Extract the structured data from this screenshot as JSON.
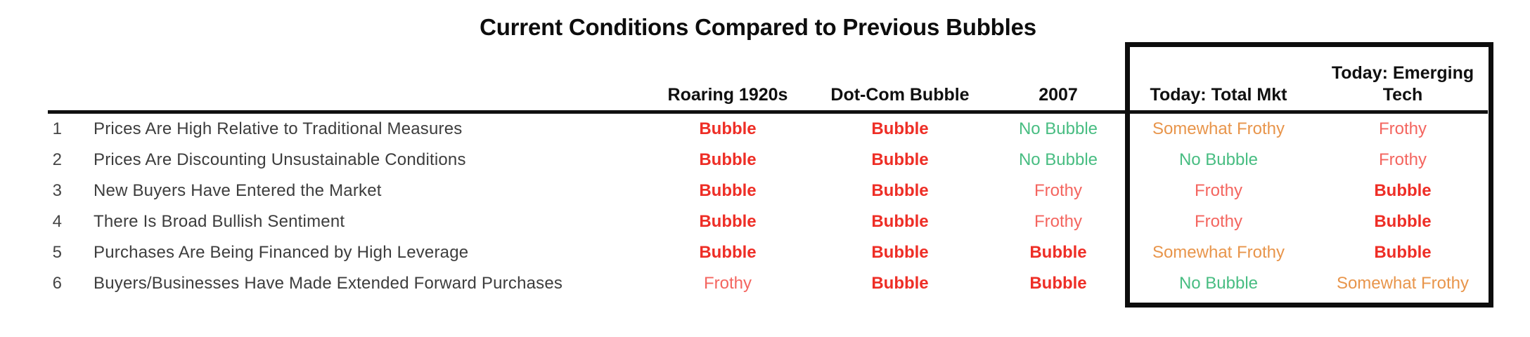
{
  "chart_data": {
    "type": "table",
    "title": "Current Conditions Compared to Previous Bubbles",
    "column_headers": [
      "Roaring 1920s",
      "Dot-Com Bubble",
      "2007",
      "Today: Total Mkt",
      "Today: Emerging Tech"
    ],
    "column_header_lines": [
      [
        "Roaring 1920s"
      ],
      [
        "Dot-Com Bubble"
      ],
      [
        "2007"
      ],
      [
        "Today: Total Mkt"
      ],
      [
        "Today: Emerging",
        "Tech"
      ]
    ],
    "boxed_columns": [
      "Today: Total Mkt",
      "Today: Emerging Tech"
    ],
    "rows": [
      {
        "num": "1",
        "label": "Prices Are High Relative to Traditional Measures",
        "values": [
          "Bubble",
          "Bubble",
          "No Bubble",
          "Somewhat Frothy",
          "Frothy"
        ]
      },
      {
        "num": "2",
        "label": "Prices Are Discounting Unsustainable Conditions",
        "values": [
          "Bubble",
          "Bubble",
          "No Bubble",
          "No Bubble",
          "Frothy"
        ]
      },
      {
        "num": "3",
        "label": "New Buyers Have Entered the Market",
        "values": [
          "Bubble",
          "Bubble",
          "Frothy",
          "Frothy",
          "Bubble"
        ]
      },
      {
        "num": "4",
        "label": "There Is Broad Bullish Sentiment",
        "values": [
          "Bubble",
          "Bubble",
          "Frothy",
          "Frothy",
          "Bubble"
        ]
      },
      {
        "num": "5",
        "label": "Purchases Are Being Financed by High Leverage",
        "values": [
          "Bubble",
          "Bubble",
          "Bubble",
          "Somewhat Frothy",
          "Bubble"
        ]
      },
      {
        "num": "6",
        "label": "Buyers/Businesses Have Made Extended Forward Purchases",
        "values": [
          "Frothy",
          "Bubble",
          "Bubble",
          "No Bubble",
          "Somewhat Frothy"
        ]
      }
    ]
  },
  "status_styles": {
    "Bubble": {
      "color": "#ee2e26",
      "bold": true
    },
    "Frothy": {
      "color": "#f4655f",
      "bold": false
    },
    "No Bubble": {
      "color": "#48bd82",
      "bold": false
    },
    "Somewhat Frothy": {
      "color": "#e8954b",
      "bold": false
    }
  },
  "colors": {
    "title_text": "#0d0d0d",
    "header_text": "#101010",
    "row_label_text": "#3d3d3d",
    "rule_and_box_border": "#0d0d0d",
    "background": "#ffffff"
  }
}
